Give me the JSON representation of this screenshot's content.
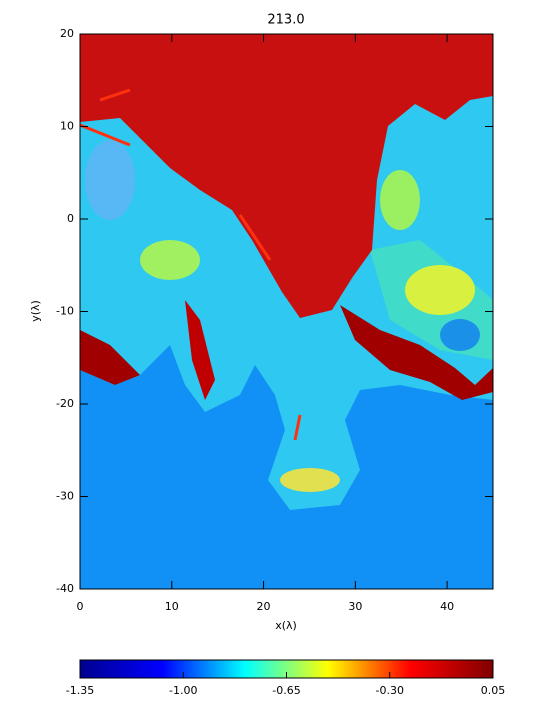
{
  "chart_data": {
    "type": "image",
    "title": "213.0",
    "xlabel": "x(λ)",
    "ylabel": "y(λ)",
    "xlim": [
      0,
      45
    ],
    "ylim": [
      -40,
      20
    ],
    "xticks": [
      0,
      10,
      20,
      30,
      40
    ],
    "yticks": [
      -40,
      -30,
      -20,
      -10,
      0,
      10,
      20
    ],
    "colorbar": {
      "clim": [
        -1.35,
        0.05
      ],
      "ticks": [
        -1.35,
        {
          "value": -1.0,
          "label": "-1.00"
        },
        -0.65,
        {
          "value": -0.3,
          "label": "-0.30"
        },
        0.05
      ],
      "colors": [
        "#00008f",
        "#0000ff",
        "#00ffff",
        "#ffff00",
        "#ff0000",
        "#800000"
      ]
    }
  }
}
